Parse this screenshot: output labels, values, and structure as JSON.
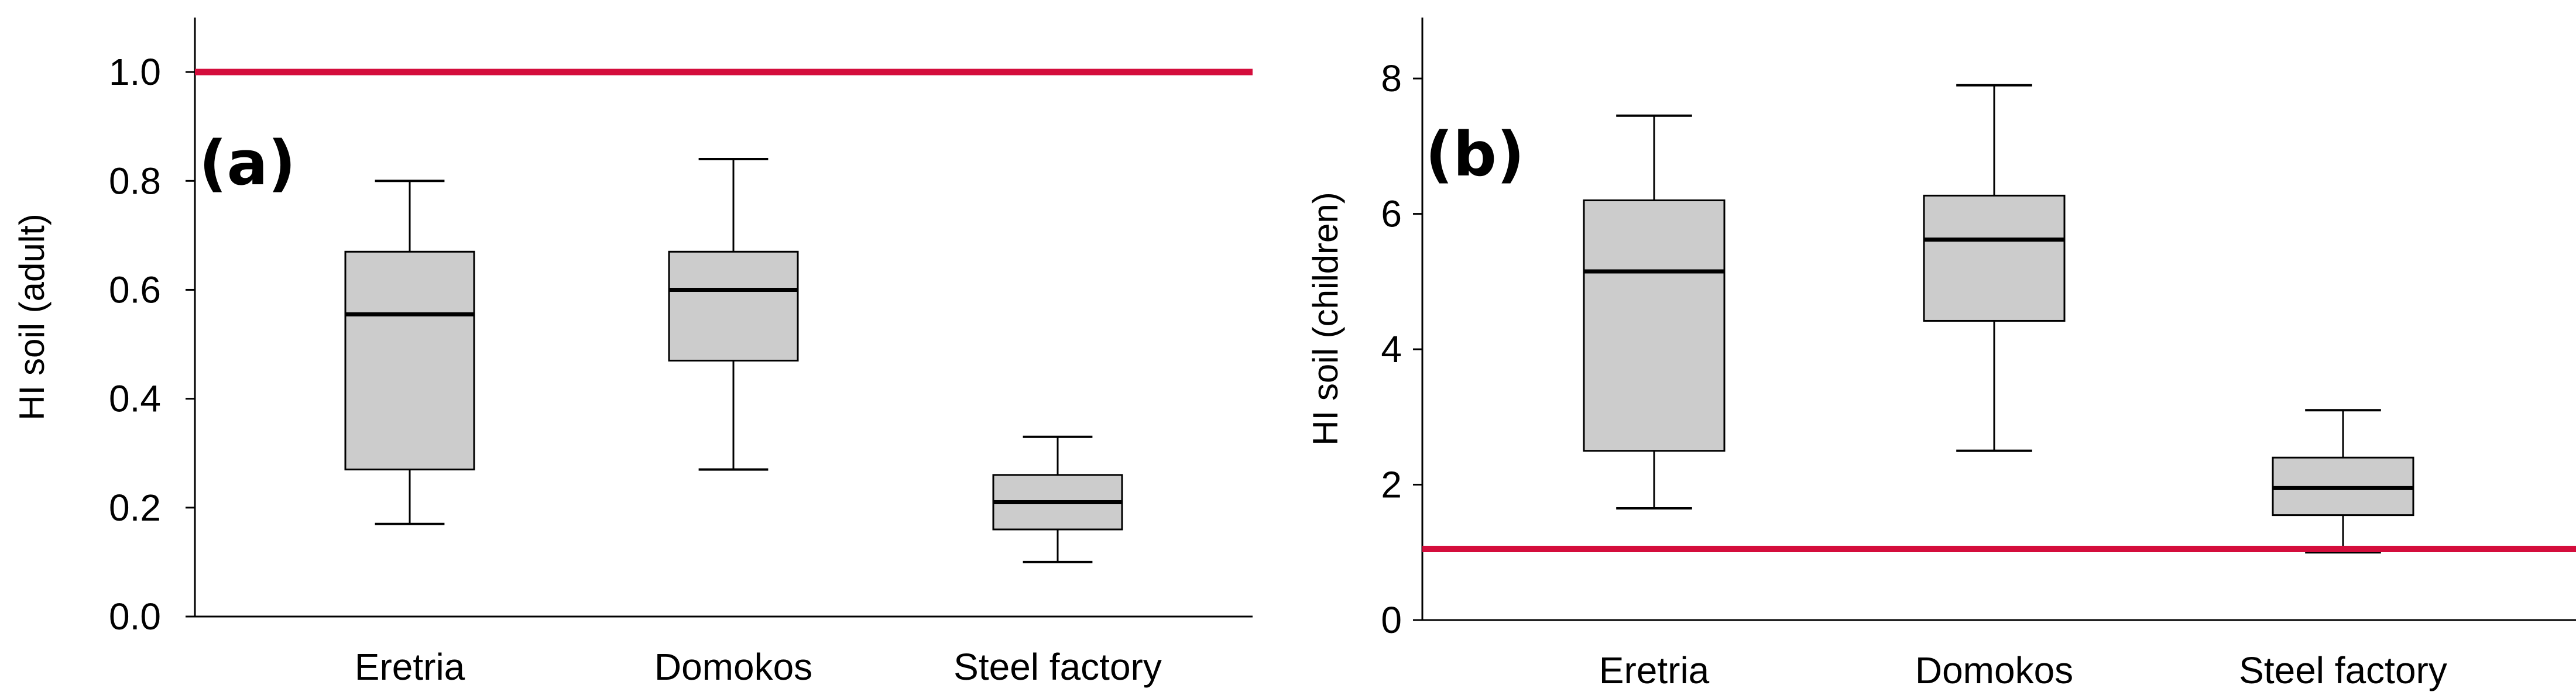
{
  "chart_data": [
    {
      "type": "box",
      "panel_label": "(a)",
      "ylabel": "HI soil (adult)",
      "xlabel": "",
      "ylim": [
        0,
        1.1
      ],
      "yticks": [
        0,
        0.2,
        0.4,
        0.6,
        0.8,
        1.0
      ],
      "ytick_labels": [
        "0.0",
        "0.2",
        "0.4",
        "0.6",
        "0.8",
        "1.0"
      ],
      "categories": [
        "Eretria",
        "Domokos",
        "Steel factory"
      ],
      "boxes": [
        {
          "min": 0.17,
          "q1": 0.27,
          "median": 0.555,
          "q3": 0.67,
          "max": 0.8
        },
        {
          "min": 0.27,
          "q1": 0.47,
          "median": 0.6,
          "q3": 0.67,
          "max": 0.84
        },
        {
          "min": 0.1,
          "q1": 0.16,
          "median": 0.21,
          "q3": 0.26,
          "max": 0.33
        }
      ],
      "reference_line": {
        "value": 1.0,
        "color": "#d40d3c"
      },
      "box_fill": "#cccccc"
    },
    {
      "type": "box",
      "panel_label": "(b)",
      "ylabel": "HI soil (children)",
      "xlabel": "",
      "ylim": [
        0,
        8.9
      ],
      "yticks": [
        0,
        2,
        4,
        6,
        8
      ],
      "ytick_labels": [
        "0",
        "2",
        "4",
        "6",
        "8"
      ],
      "categories": [
        "Eretria",
        "Domokos",
        "Steel factory"
      ],
      "boxes": [
        {
          "min": 1.65,
          "q1": 2.5,
          "median": 5.15,
          "q3": 6.2,
          "max": 7.45
        },
        {
          "min": 2.5,
          "q1": 4.42,
          "median": 5.62,
          "q3": 6.27,
          "max": 7.9
        },
        {
          "min": 1.0,
          "q1": 1.55,
          "median": 1.95,
          "q3": 2.4,
          "max": 3.1
        }
      ],
      "reference_line": {
        "value": 1.05,
        "color": "#d40d3c"
      },
      "box_fill": "#cccccc"
    }
  ]
}
